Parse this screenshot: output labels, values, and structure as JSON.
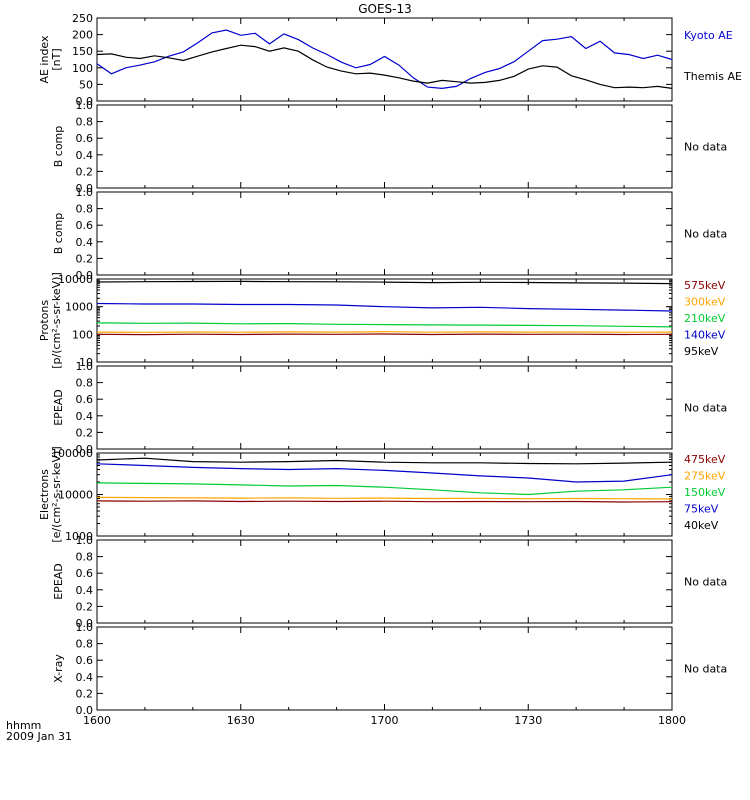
{
  "title": "GOES-13",
  "time_axis": {
    "label_line1": "hhmm",
    "label_line2": "2009 Jan 31",
    "tick_labels": [
      "1600",
      "1630",
      "1700",
      "1730",
      "1800"
    ],
    "range_minutes": [
      0,
      120
    ]
  },
  "no_data_text": "No data",
  "chart_data": [
    {
      "id": "ae",
      "type": "line",
      "ylabel": "AE index\n[nT]",
      "ylim": [
        0,
        250
      ],
      "yticks": [
        0,
        50,
        100,
        150,
        200,
        250
      ],
      "scale": "linear",
      "x_unit": "minutes after 1600 UT",
      "legend": "right",
      "series": [
        {
          "name": "Kyoto AE",
          "color": "#0000cc",
          "x": [
            0,
            3,
            6,
            9,
            12,
            15,
            18,
            21,
            24,
            27,
            30,
            33,
            36,
            39,
            42,
            45,
            48,
            51,
            54,
            57,
            60,
            63,
            66,
            69,
            72,
            75,
            78,
            81,
            84,
            87,
            90,
            93,
            96,
            99,
            102,
            105,
            108,
            111,
            114,
            117,
            120
          ],
          "y": [
            112,
            82,
            100,
            108,
            118,
            135,
            148,
            175,
            205,
            214,
            198,
            204,
            172,
            202,
            185,
            160,
            140,
            117,
            100,
            110,
            134,
            108,
            70,
            42,
            38,
            44,
            68,
            86,
            98,
            118,
            150,
            182,
            186,
            194,
            158,
            180,
            145,
            140,
            128,
            138,
            125
          ]
        },
        {
          "name": "Themis AE",
          "color": "#000000",
          "x": [
            0,
            3,
            6,
            9,
            12,
            15,
            18,
            21,
            24,
            27,
            30,
            33,
            36,
            39,
            42,
            45,
            48,
            51,
            54,
            57,
            60,
            63,
            66,
            69,
            72,
            75,
            78,
            81,
            84,
            87,
            90,
            93,
            96,
            99,
            102,
            105,
            108,
            111,
            114,
            117,
            120
          ],
          "y": [
            140,
            142,
            132,
            128,
            136,
            130,
            122,
            135,
            148,
            158,
            168,
            164,
            150,
            160,
            150,
            124,
            102,
            90,
            82,
            84,
            78,
            70,
            60,
            54,
            62,
            58,
            54,
            56,
            62,
            74,
            96,
            106,
            102,
            76,
            64,
            50,
            40,
            42,
            40,
            44,
            38
          ]
        }
      ]
    },
    {
      "id": "b1",
      "type": "line",
      "ylabel": "B comp",
      "ylim": [
        0,
        1.0
      ],
      "yticks": [
        0,
        0.2,
        0.4,
        0.6,
        0.8,
        1.0
      ],
      "scale": "linear",
      "no_data": true,
      "series": []
    },
    {
      "id": "b2",
      "type": "line",
      "ylabel": "B comp",
      "ylim": [
        0,
        1.0
      ],
      "yticks": [
        0,
        0.2,
        0.4,
        0.6,
        0.8,
        1.0
      ],
      "scale": "linear",
      "no_data": true,
      "series": []
    },
    {
      "id": "protons",
      "type": "line",
      "ylabel": "Protons\n[p/(cm²-s-sr-keV)]",
      "ylim": [
        10,
        10000
      ],
      "yticks": [
        10,
        100,
        1000,
        10000
      ],
      "scale": "log",
      "x_unit": "minutes after 1600 UT",
      "legend": "right",
      "series": [
        {
          "name": "575keV",
          "color": "#8b0000",
          "x": [
            0,
            10,
            20,
            30,
            40,
            50,
            60,
            70,
            80,
            90,
            100,
            110,
            120
          ],
          "y": [
            100,
            98,
            101,
            99,
            102,
            100,
            103,
            99,
            102,
            100,
            101,
            99,
            100
          ]
        },
        {
          "name": "300keV",
          "color": "#ffa500",
          "x": [
            0,
            10,
            20,
            30,
            40,
            50,
            60,
            70,
            80,
            90,
            100,
            110,
            120
          ],
          "y": [
            120,
            118,
            121,
            119,
            122,
            120,
            124,
            119,
            122,
            120,
            121,
            119,
            120
          ]
        },
        {
          "name": "210keV",
          "color": "#00cc33",
          "x": [
            0,
            10,
            20,
            30,
            40,
            50,
            60,
            70,
            80,
            90,
            100,
            110,
            120
          ],
          "y": [
            260,
            250,
            255,
            240,
            245,
            230,
            225,
            220,
            215,
            210,
            205,
            195,
            185
          ]
        },
        {
          "name": "140keV",
          "color": "#0000cc",
          "x": [
            0,
            10,
            20,
            30,
            40,
            50,
            60,
            70,
            80,
            90,
            100,
            110,
            120
          ],
          "y": [
            1300,
            1250,
            1250,
            1200,
            1200,
            1150,
            1000,
            900,
            950,
            850,
            800,
            750,
            700
          ]
        },
        {
          "name": "95keV",
          "color": "#000000",
          "x": [
            0,
            10,
            20,
            30,
            40,
            50,
            60,
            70,
            80,
            90,
            100,
            110,
            120
          ],
          "y": [
            7800,
            8000,
            8100,
            8200,
            8000,
            7900,
            7700,
            7400,
            7600,
            7500,
            7200,
            7100,
            6800
          ]
        }
      ]
    },
    {
      "id": "epead1",
      "type": "line",
      "ylabel": "EPEAD",
      "ylim": [
        0,
        1.0
      ],
      "yticks": [
        0,
        0.2,
        0.4,
        0.6,
        0.8,
        1.0
      ],
      "scale": "linear",
      "no_data": true,
      "series": []
    },
    {
      "id": "electrons",
      "type": "line",
      "ylabel": "Electrons\n[e/(cm²-s-sr-keV)]",
      "ylim": [
        1000,
        100000
      ],
      "yticks": [
        1000,
        10000,
        100000
      ],
      "scale": "log",
      "x_unit": "minutes after 1600 UT",
      "legend": "right",
      "series": [
        {
          "name": "475keV",
          "color": "#8b0000",
          "x": [
            0,
            10,
            20,
            30,
            40,
            50,
            60,
            70,
            80,
            90,
            100,
            110,
            120
          ],
          "y": [
            7000,
            6900,
            7000,
            6800,
            6900,
            6800,
            6900,
            6700,
            6800,
            6700,
            6800,
            6600,
            6700
          ]
        },
        {
          "name": "275keV",
          "color": "#ffa500",
          "x": [
            0,
            10,
            20,
            30,
            40,
            50,
            60,
            70,
            80,
            90,
            100,
            110,
            120
          ],
          "y": [
            8500,
            8400,
            8300,
            8200,
            8300,
            8100,
            8200,
            8000,
            8100,
            7900,
            8000,
            7900,
            7800
          ]
        },
        {
          "name": "150keV",
          "color": "#00cc33",
          "x": [
            0,
            10,
            20,
            30,
            40,
            50,
            60,
            70,
            80,
            90,
            100,
            110,
            120
          ],
          "y": [
            19000,
            18500,
            18000,
            17000,
            16000,
            16500,
            15000,
            13000,
            11000,
            10000,
            12000,
            13000,
            15000
          ]
        },
        {
          "name": "75keV",
          "color": "#0000cc",
          "x": [
            0,
            10,
            20,
            30,
            40,
            50,
            60,
            70,
            80,
            90,
            100,
            110,
            120
          ],
          "y": [
            55000,
            50000,
            45000,
            42000,
            40000,
            42000,
            38000,
            33000,
            28000,
            25000,
            20000,
            21000,
            30000
          ]
        },
        {
          "name": "40keV",
          "color": "#000000",
          "x": [
            0,
            10,
            20,
            30,
            40,
            50,
            60,
            70,
            80,
            90,
            100,
            110,
            120
          ],
          "y": [
            68000,
            75000,
            62000,
            60000,
            62000,
            66000,
            60000,
            58000,
            58000,
            56000,
            55000,
            57000,
            60000
          ]
        }
      ]
    },
    {
      "id": "epead2",
      "type": "line",
      "ylabel": "EPEAD",
      "ylim": [
        0,
        1.0
      ],
      "yticks": [
        0,
        0.2,
        0.4,
        0.6,
        0.8,
        1.0
      ],
      "scale": "linear",
      "no_data": true,
      "series": []
    },
    {
      "id": "xray",
      "type": "line",
      "ylabel": "X-ray",
      "ylim": [
        0,
        1.0
      ],
      "yticks": [
        0,
        0.2,
        0.4,
        0.6,
        0.8,
        1.0
      ],
      "scale": "linear",
      "no_data": true,
      "series": []
    }
  ]
}
